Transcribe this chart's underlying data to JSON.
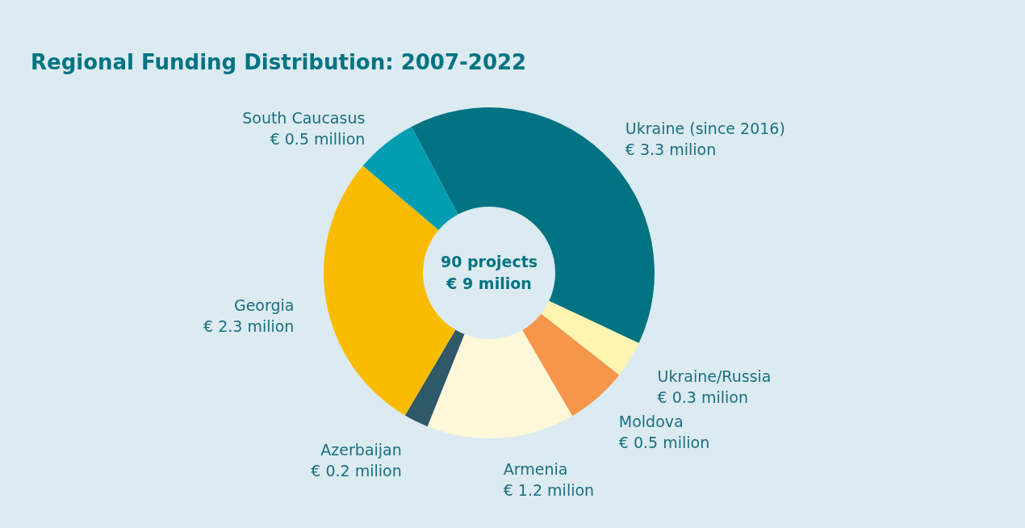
{
  "chart_data": {
    "type": "donut",
    "title": "Regional Funding Distribution: 2007-2022",
    "categories": [
      "Ukraine (since 2016)",
      "Ukraine/Russia",
      "Moldova",
      "Armenia",
      "Azerbaijan",
      "Georgia",
      "South Caucasus"
    ],
    "values": [
      3.3,
      0.3,
      0.5,
      1.2,
      0.2,
      2.3,
      0.5
    ],
    "value_labels": [
      "€ 3.3 milion",
      "€ 0.3 milion",
      "€ 0.5 milion",
      "€ 1.2 milion",
      "€ 0.2 milion",
      "€ 2.3 milion",
      "€ 0.5 million"
    ],
    "colors": [
      "#007383",
      "#fff5b0",
      "#f5964a",
      "#fff8d8",
      "#2f5868",
      "#fabc00",
      "#019db0"
    ],
    "annotations": [
      "90 projects",
      "€ 9 milion"
    ]
  }
}
